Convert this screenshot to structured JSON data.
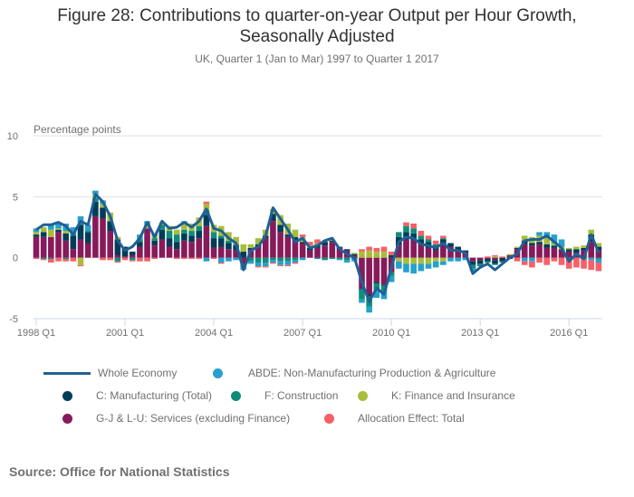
{
  "header": {
    "title_line1": "Figure 28: Contributions to quarter-on-year Output per Hour Growth,",
    "title_line2": "Seasonally Adjusted",
    "subtitle": "UK, Quarter 1 (Jan to Mar) 1997 to Quarter 1 2017"
  },
  "footer": {
    "source": "Source: Office for National Statistics"
  },
  "chart_data": {
    "type": "bar",
    "stacked": true,
    "title": "Figure 28: Contributions to quarter-on-year Output per Hour Growth, Seasonally Adjusted",
    "subtitle": "UK, Quarter 1 (Jan to Mar) 1997 to Quarter 1 2017",
    "ylabel": "Percentage points",
    "xlabel": "",
    "ylim": [
      -5,
      10
    ],
    "yticks": [
      10,
      5,
      0,
      -5
    ],
    "xtick_labels": [
      "1998 Q1",
      "2001 Q1",
      "2004 Q1",
      "2007 Q1",
      "2010 Q1",
      "2013 Q1",
      "2016 Q1"
    ],
    "xtick_indices": [
      0,
      12,
      24,
      36,
      48,
      60,
      72
    ],
    "grid": true,
    "legend_position": "bottom",
    "x_start": "1998 Q1",
    "x_end": "2017 Q1",
    "series": [
      {
        "name": "G-J & L-U: Services (excluding Finance)",
        "kind": "bar",
        "color": "#871a5b",
        "values": [
          1.7,
          1.7,
          1.7,
          2.1,
          1.4,
          0.7,
          1.5,
          1.2,
          3.4,
          3.2,
          2.2,
          0.2,
          0.1,
          0.2,
          0.9,
          2.4,
          1.0,
          1.5,
          0.9,
          0.7,
          1.4,
          1.3,
          1.6,
          2.6,
          0.8,
          0.9,
          0.7,
          0.6,
          -0.5,
          0.6,
          0.9,
          1.6,
          3.0,
          2.1,
          1.7,
          1.4,
          1.2,
          0.6,
          0.8,
          1.0,
          1.3,
          0.8,
          0.6,
          0.2,
          -2.5,
          -3.0,
          -2.0,
          -2.2,
          -1.2,
          1.0,
          1.5,
          1.4,
          1.1,
          0.8,
          0.6,
          1.2,
          0.9,
          0.6,
          0.4,
          -0.3,
          -0.2,
          -0.1,
          -0.2,
          0.0,
          0.2,
          0.7,
          1.1,
          1.0,
          1.1,
          0.8,
          0.8,
          0.6,
          0.5,
          0.4,
          0.6,
          1.3,
          0.6
        ]
      },
      {
        "name": "C: Manufacturing (Total)",
        "kind": "bar",
        "color": "#003c57",
        "values": [
          0.2,
          0.4,
          0.0,
          0.2,
          0.6,
          1.1,
          1.2,
          0.9,
          1.2,
          0.9,
          0.8,
          1.3,
          0.8,
          0.3,
          0.4,
          0.0,
          0.4,
          0.8,
          0.7,
          0.6,
          0.6,
          0.5,
          0.6,
          0.9,
          0.8,
          0.7,
          0.5,
          0.4,
          0.5,
          0.2,
          0.2,
          0.2,
          0.6,
          0.6,
          0.2,
          0.3,
          0.1,
          0.2,
          0.2,
          0.3,
          0.1,
          0.1,
          0.1,
          0.1,
          -0.1,
          -0.2,
          -0.1,
          -0.1,
          0.2,
          0.7,
          0.6,
          0.6,
          0.4,
          0.5,
          0.4,
          0.3,
          0.3,
          0.3,
          0.2,
          -0.3,
          -0.3,
          -0.2,
          -0.3,
          -0.3,
          -0.1,
          0.1,
          0.3,
          0.2,
          0.2,
          0.3,
          0.2,
          0.1,
          0.2,
          0.3,
          0.2,
          0.6,
          0.3
        ]
      },
      {
        "name": "F: Construction",
        "kind": "bar",
        "color": "#118c7b",
        "values": [
          0.0,
          -0.1,
          -0.1,
          0.0,
          -0.1,
          0.1,
          0.1,
          0.1,
          0.3,
          0.0,
          0.0,
          -0.3,
          0.0,
          -0.2,
          0.2,
          0.0,
          0.2,
          0.4,
          0.6,
          0.6,
          0.3,
          0.4,
          0.4,
          0.4,
          0.5,
          0.2,
          0.2,
          0.1,
          -0.3,
          -0.3,
          -0.4,
          -0.4,
          -0.2,
          -0.3,
          -0.3,
          -0.2,
          0.0,
          0.0,
          -0.1,
          -0.2,
          -0.1,
          -0.1,
          -0.2,
          -0.1,
          -0.8,
          -0.8,
          -0.6,
          -0.5,
          -0.3,
          0.4,
          0.5,
          0.4,
          0.3,
          0.2,
          0.1,
          0.1,
          0.0,
          0.0,
          0.0,
          -0.3,
          -0.2,
          -0.1,
          -0.1,
          -0.1,
          0.0,
          0.0,
          0.0,
          0.0,
          0.0,
          0.0,
          0.0,
          0.0,
          -0.1,
          0.0,
          -0.1,
          0.0,
          -0.1
        ]
      },
      {
        "name": "K: Finance and Insurance",
        "kind": "bar",
        "color": "#a8bd3a",
        "values": [
          0.2,
          0.4,
          0.6,
          0.1,
          0.2,
          0.0,
          -0.6,
          0.0,
          0.3,
          0.3,
          0.7,
          0.2,
          0.0,
          0.0,
          0.0,
          0.3,
          0.2,
          0.2,
          0.4,
          0.4,
          0.5,
          0.6,
          0.7,
          0.5,
          0.6,
          0.8,
          0.7,
          0.6,
          0.6,
          0.3,
          0.5,
          0.5,
          0.4,
          0.8,
          0.9,
          0.6,
          0.4,
          0.2,
          0.2,
          0.1,
          0.1,
          0.0,
          0.0,
          0.1,
          0.5,
          0.6,
          0.5,
          0.5,
          0.0,
          -0.3,
          -0.5,
          -0.5,
          -0.5,
          -0.5,
          -0.3,
          -0.3,
          0.0,
          0.0,
          0.0,
          0.0,
          0.0,
          0.0,
          0.1,
          0.0,
          0.1,
          0.1,
          0.4,
          0.5,
          0.5,
          0.5,
          0.2,
          0.2,
          0.1,
          0.2,
          0.2,
          0.4,
          0.3
        ]
      },
      {
        "name": "ABDE: Non-Manufacturing Production & Agriculture",
        "kind": "bar",
        "color": "#27a0cc",
        "values": [
          0.3,
          0.0,
          0.5,
          0.4,
          0.6,
          0.6,
          0.6,
          0.5,
          0.3,
          0.3,
          0.0,
          0.0,
          0.0,
          0.0,
          0.4,
          0.3,
          0.2,
          0.0,
          0.0,
          0.0,
          0.2,
          0.0,
          0.0,
          -0.3,
          0.0,
          -0.4,
          -0.3,
          -0.2,
          -0.2,
          -0.2,
          -0.3,
          -0.3,
          -0.2,
          -0.3,
          -0.3,
          -0.2,
          -0.2,
          0.0,
          0.0,
          0.0,
          0.0,
          -0.1,
          -0.2,
          -0.2,
          -0.3,
          -0.5,
          -0.6,
          -0.6,
          -0.5,
          -0.6,
          -0.7,
          -0.8,
          -0.6,
          -0.4,
          -0.5,
          -0.3,
          -0.3,
          -0.3,
          -0.2,
          -0.2,
          0.0,
          0.0,
          0.0,
          0.0,
          0.0,
          0.0,
          -0.3,
          -0.3,
          0.3,
          0.5,
          0.7,
          0.6,
          0.0,
          0.0,
          0.0,
          -0.2,
          -0.3
        ]
      },
      {
        "name": "Allocation Effect: Total",
        "kind": "bar",
        "color": "#f66068",
        "values": [
          -0.1,
          -0.1,
          -0.3,
          -0.3,
          -0.2,
          -0.3,
          -0.1,
          0.0,
          0.0,
          -0.2,
          -0.2,
          -0.1,
          -0.2,
          -0.1,
          -0.3,
          -0.3,
          -0.1,
          0.0,
          0.0,
          -0.1,
          -0.1,
          -0.1,
          -0.1,
          0.2,
          -0.1,
          -0.1,
          0.0,
          0.0,
          0.0,
          0.0,
          -0.1,
          -0.1,
          -0.1,
          -0.1,
          -0.1,
          -0.1,
          0.2,
          0.3,
          0.3,
          0.0,
          0.0,
          0.0,
          0.0,
          0.0,
          0.2,
          0.3,
          0.3,
          0.4,
          0.3,
          0.0,
          0.3,
          0.4,
          0.4,
          0.3,
          0.3,
          0.2,
          0.0,
          0.0,
          0.0,
          0.0,
          0.0,
          0.1,
          0.1,
          0.1,
          0.0,
          -0.3,
          -0.3,
          -0.5,
          -0.4,
          -0.6,
          -0.3,
          -0.6,
          -0.8,
          -0.8,
          -0.8,
          -0.8,
          -0.7
        ]
      },
      {
        "name": "Whole Economy",
        "kind": "line",
        "color": "#206095",
        "values": [
          2.3,
          2.7,
          2.7,
          2.9,
          2.6,
          1.9,
          3.0,
          2.7,
          5.2,
          4.6,
          3.4,
          1.4,
          0.6,
          0.9,
          1.6,
          2.9,
          1.7,
          3.0,
          2.4,
          2.5,
          2.9,
          2.5,
          3.0,
          4.0,
          2.4,
          2.2,
          1.6,
          1.2,
          -1.0,
          0.6,
          0.9,
          1.8,
          4.1,
          3.2,
          2.3,
          1.3,
          1.6,
          0.8,
          1.0,
          1.4,
          1.6,
          0.7,
          0.3,
          0.0,
          -2.0,
          -3.6,
          -2.5,
          -3.0,
          -0.8,
          1.3,
          1.7,
          1.6,
          1.1,
          1.0,
          0.8,
          1.2,
          0.6,
          0.6,
          0.4,
          -1.3,
          -0.8,
          -0.5,
          -1.0,
          -0.5,
          0.0,
          0.3,
          1.4,
          1.5,
          1.5,
          1.8,
          1.3,
          0.8,
          -0.3,
          0.3,
          -0.1,
          1.9,
          0.4
        ]
      }
    ]
  },
  "legend": {
    "items": [
      {
        "label": "Whole Economy",
        "color": "#206095",
        "shape": "line"
      },
      {
        "label": "ABDE: Non-Manufacturing Production & Agriculture",
        "color": "#27a0cc",
        "shape": "dot"
      },
      {
        "label": "C: Manufacturing (Total)",
        "color": "#003c57",
        "shape": "dot"
      },
      {
        "label": "F: Construction",
        "color": "#118c7b",
        "shape": "dot"
      },
      {
        "label": "K: Finance and Insurance",
        "color": "#a8bd3a",
        "shape": "dot"
      },
      {
        "label": "G-J & L-U: Services (excluding Finance)",
        "color": "#871a5b",
        "shape": "dot"
      },
      {
        "label": "Allocation Effect: Total",
        "color": "#f66068",
        "shape": "dot"
      }
    ]
  }
}
